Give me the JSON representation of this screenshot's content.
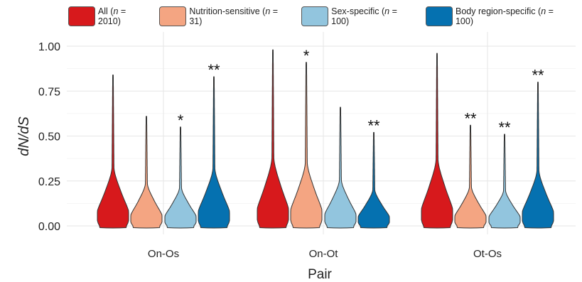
{
  "chart_data": {
    "type": "violin",
    "title": "",
    "xlabel": "Pair",
    "ylabel": "dN/dS",
    "ylim": [
      0,
      1.0
    ],
    "yticks": [
      "0.00",
      "0.25",
      "0.50",
      "0.75",
      "1.00"
    ],
    "ytick_values": [
      0,
      0.25,
      0.5,
      0.75,
      1.0
    ],
    "grid": true,
    "legend_position": "top",
    "categories": [
      "On-Os",
      "On-Ot",
      "Ot-Os"
    ],
    "series": [
      {
        "name": "All (n = 2010)",
        "legend_prefix": "All (",
        "legend_n": "n",
        "legend_suffix": " = 2010)",
        "color": "#d7191c",
        "max": [
          0.84,
          0.98,
          0.96
        ],
        "significance": [
          "",
          "",
          ""
        ]
      },
      {
        "name": "Nutrition-sensitive (n = 31)",
        "legend_prefix": "Nutrition-sensitive (",
        "legend_n": "n",
        "legend_suffix": " = 31)",
        "color": "#f4a582",
        "max": [
          0.61,
          0.91,
          0.56
        ],
        "significance": [
          "",
          "*",
          "**"
        ]
      },
      {
        "name": "Sex-specific (n = 100)",
        "legend_prefix": "Sex-specific (",
        "legend_n": "n",
        "legend_suffix": " = 100)",
        "color": "#92c5de",
        "max": [
          0.55,
          0.66,
          0.51
        ],
        "significance": [
          "*",
          "",
          "**"
        ]
      },
      {
        "name": "Body region-specific (n = 100)",
        "legend_prefix": "Body region-specific (",
        "legend_n": "n",
        "legend_suffix": " = 100)",
        "color": "#0571b0",
        "max": [
          0.83,
          0.52,
          0.8
        ],
        "significance": [
          "**",
          "**",
          "**"
        ]
      }
    ]
  }
}
